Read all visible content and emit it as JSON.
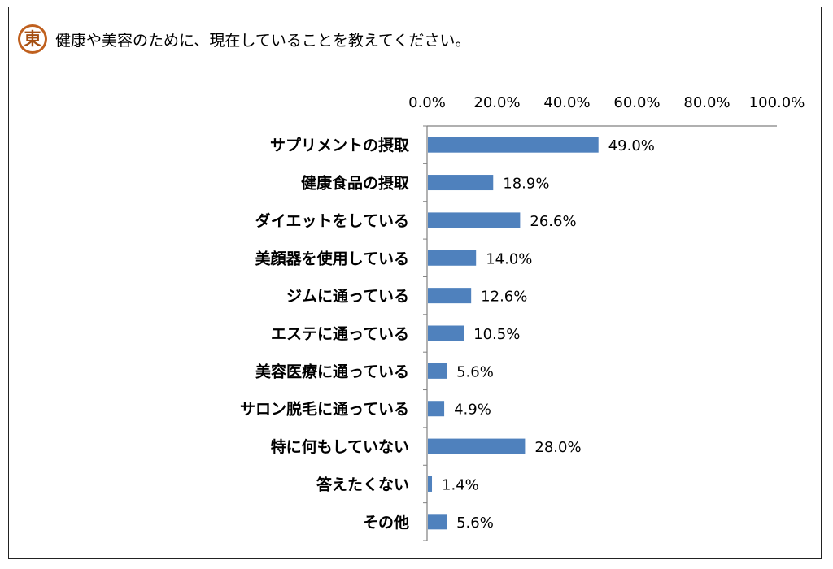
{
  "question": {
    "badge_char": "東",
    "text": "健康や美容のために、現在していることを教えてください。"
  },
  "chart_data": {
    "type": "bar",
    "orientation": "horizontal",
    "categories": [
      "サプリメントの摂取",
      "健康食品の摂取",
      "ダイエットをしている",
      "美顔器を使用している",
      "ジムに通っている",
      "エステに通っている",
      "美容医療に通っている",
      "サロン脱毛に通っている",
      "特に何もしていない",
      "答えたくない",
      "その他"
    ],
    "values": [
      49.0,
      18.9,
      26.6,
      14.0,
      12.6,
      10.5,
      5.6,
      4.9,
      28.0,
      1.4,
      5.6
    ],
    "value_labels": [
      "49.0%",
      "18.9%",
      "26.6%",
      "14.0%",
      "12.6%",
      "10.5%",
      "5.6%",
      "4.9%",
      "28.0%",
      "1.4%",
      "5.6%"
    ],
    "x_ticks": [
      0,
      20,
      40,
      60,
      80,
      100
    ],
    "x_tick_labels": [
      "0.0%",
      "20.0%",
      "40.0%",
      "60.0%",
      "80.0%",
      "100.0%"
    ],
    "xlim": [
      0,
      100
    ],
    "axis_position": "top",
    "grid": false,
    "bar_color": "#4f81bd"
  }
}
